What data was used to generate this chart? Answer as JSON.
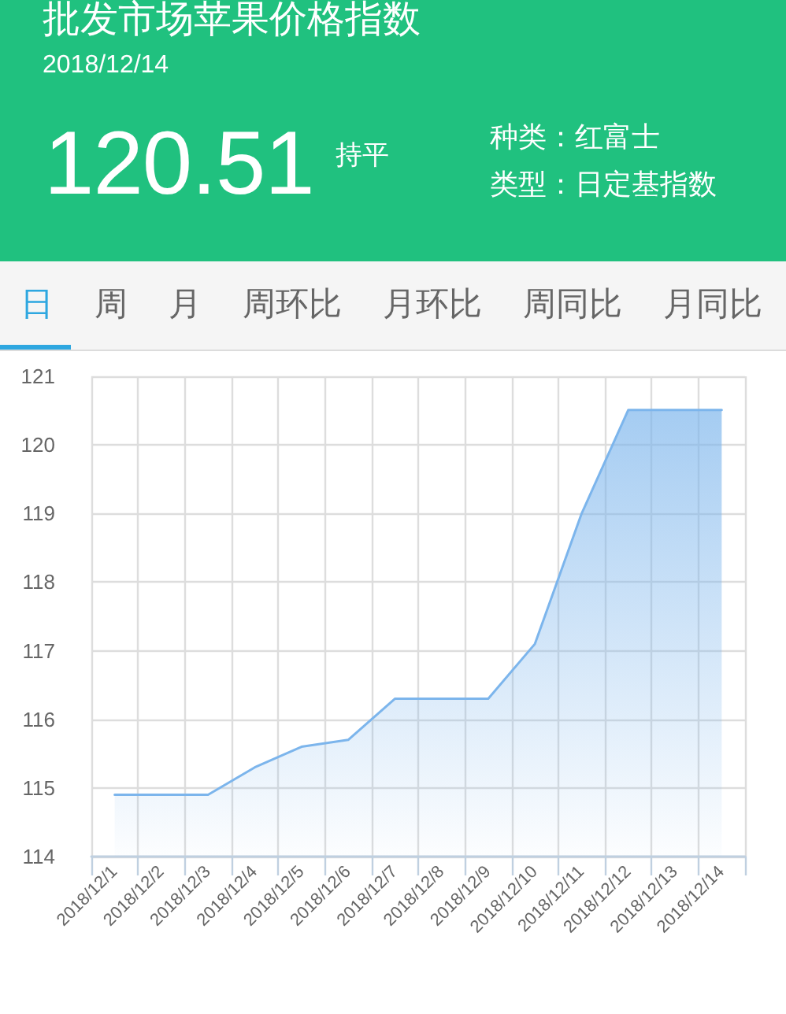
{
  "chart_data": {
    "type": "area",
    "title": "批发市场苹果价格指数",
    "subtitle": "2018/12/14",
    "annotations": [
      "120.51",
      "持平",
      "种类：红富士",
      "类型：日定基指数",
      "日",
      "周",
      "月",
      "周环比",
      "月环比",
      "周同比",
      "月同比"
    ],
    "categories": [
      "2018/12/1",
      "2018/12/2",
      "2018/12/3",
      "2018/12/4",
      "2018/12/5",
      "2018/12/6",
      "2018/12/7",
      "2018/12/8",
      "2018/12/9",
      "2018/12/10",
      "2018/12/11",
      "2018/12/12",
      "2018/12/13",
      "2018/12/14"
    ],
    "series": [
      {
        "color": "#7cb5ec",
        "values": [
          114.9,
          114.9,
          114.9,
          115.3,
          115.6,
          115.7,
          116.3,
          116.3,
          116.3,
          117.1,
          119.0,
          120.51,
          120.51,
          120.51
        ]
      }
    ],
    "ylim": [
      114,
      121
    ],
    "yticks": [
      114,
      115,
      116,
      117,
      118,
      119,
      120,
      121
    ],
    "grid": true,
    "marker": "none",
    "line_style": "solid"
  }
}
